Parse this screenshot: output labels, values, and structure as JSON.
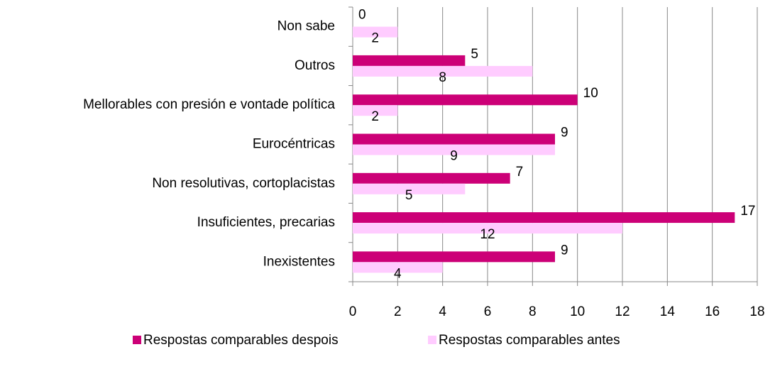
{
  "chart_data": {
    "type": "hbar",
    "categories": [
      "Non sabe",
      "Outros",
      "Mellorables con presión e vontade política",
      "Eurocéntricas",
      "Non resolutivas, cortoplacistas",
      "Insuficientes, precarias",
      "Inexistentes"
    ],
    "series": [
      {
        "name": "Respostas comparables despois",
        "color": "#cc0077",
        "values": [
          0,
          5,
          10,
          9,
          7,
          17,
          9
        ]
      },
      {
        "name": "Respostas comparables antes",
        "color": "#ffccff",
        "values": [
          2,
          8,
          2,
          9,
          5,
          12,
          4
        ]
      }
    ],
    "xlim": [
      0,
      18
    ],
    "xticks": [
      0,
      2,
      4,
      6,
      8,
      10,
      12,
      14,
      16,
      18
    ],
    "grid": true,
    "legend": "bottom"
  }
}
